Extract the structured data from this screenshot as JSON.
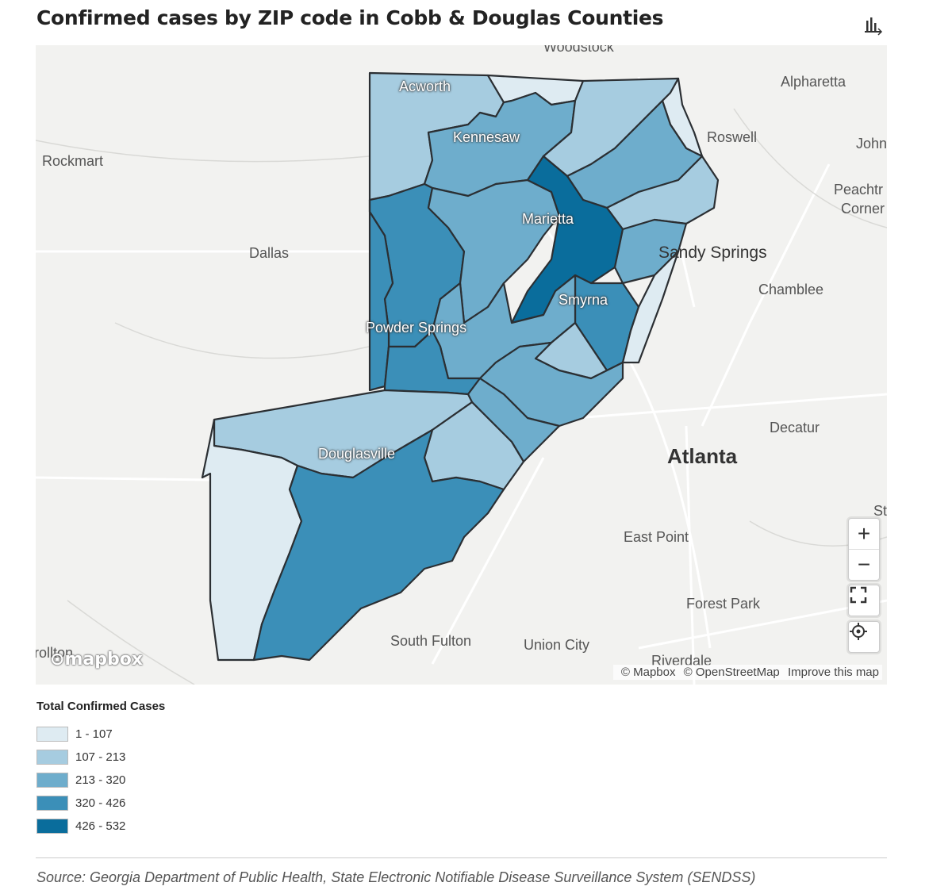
{
  "header": {
    "title": "Confirmed cases by ZIP code in Cobb & Douglas Counties",
    "chart_icon": "bar-chart-icon"
  },
  "map": {
    "places": {
      "woodstock": "Woodstock",
      "acworth": "Acworth",
      "alpharetta": "Alpharetta",
      "roswell": "Roswell",
      "johns_creek": "John",
      "rockmart": "Rockmart",
      "kennesaw": "Kennesaw",
      "peachtree": "Peachtr",
      "corners": "Corner",
      "dallas": "Dallas",
      "marietta": "Marietta",
      "sandy_springs": "Sandy Springs",
      "chamblee": "Chamblee",
      "smyrna": "Smyrna",
      "powder_springs": "Powder Springs",
      "decatur": "Decatur",
      "douglasville": "Douglasville",
      "atlanta": "Atlanta",
      "st": "St",
      "east_point": "East Point",
      "forest_park": "Forest Park",
      "south_fulton": "South Fulton",
      "union_city": "Union City",
      "riverdale": "Riverdale",
      "carrollton": "rollton"
    },
    "controls": {
      "zoom_in": "+",
      "zoom_out": "−"
    },
    "logo": "mapbox",
    "attribution": {
      "mapbox": "© Mapbox",
      "osm": "© OpenStreetMap",
      "improve": "Improve this map"
    }
  },
  "legend": {
    "title": "Total Confirmed Cases",
    "items": [
      {
        "label": "1 - 107",
        "color": "#deebf2"
      },
      {
        "label": "107 - 213",
        "color": "#a6cce0"
      },
      {
        "label": "213 - 320",
        "color": "#6eadcc"
      },
      {
        "label": "320 - 426",
        "color": "#3b8fb8"
      },
      {
        "label": "426 - 532",
        "color": "#0a6d9c"
      }
    ]
  },
  "source": "Source: Georgia Department of Public Health, State Electronic Notifiable Disease Surveillance System (SENDSS)"
}
